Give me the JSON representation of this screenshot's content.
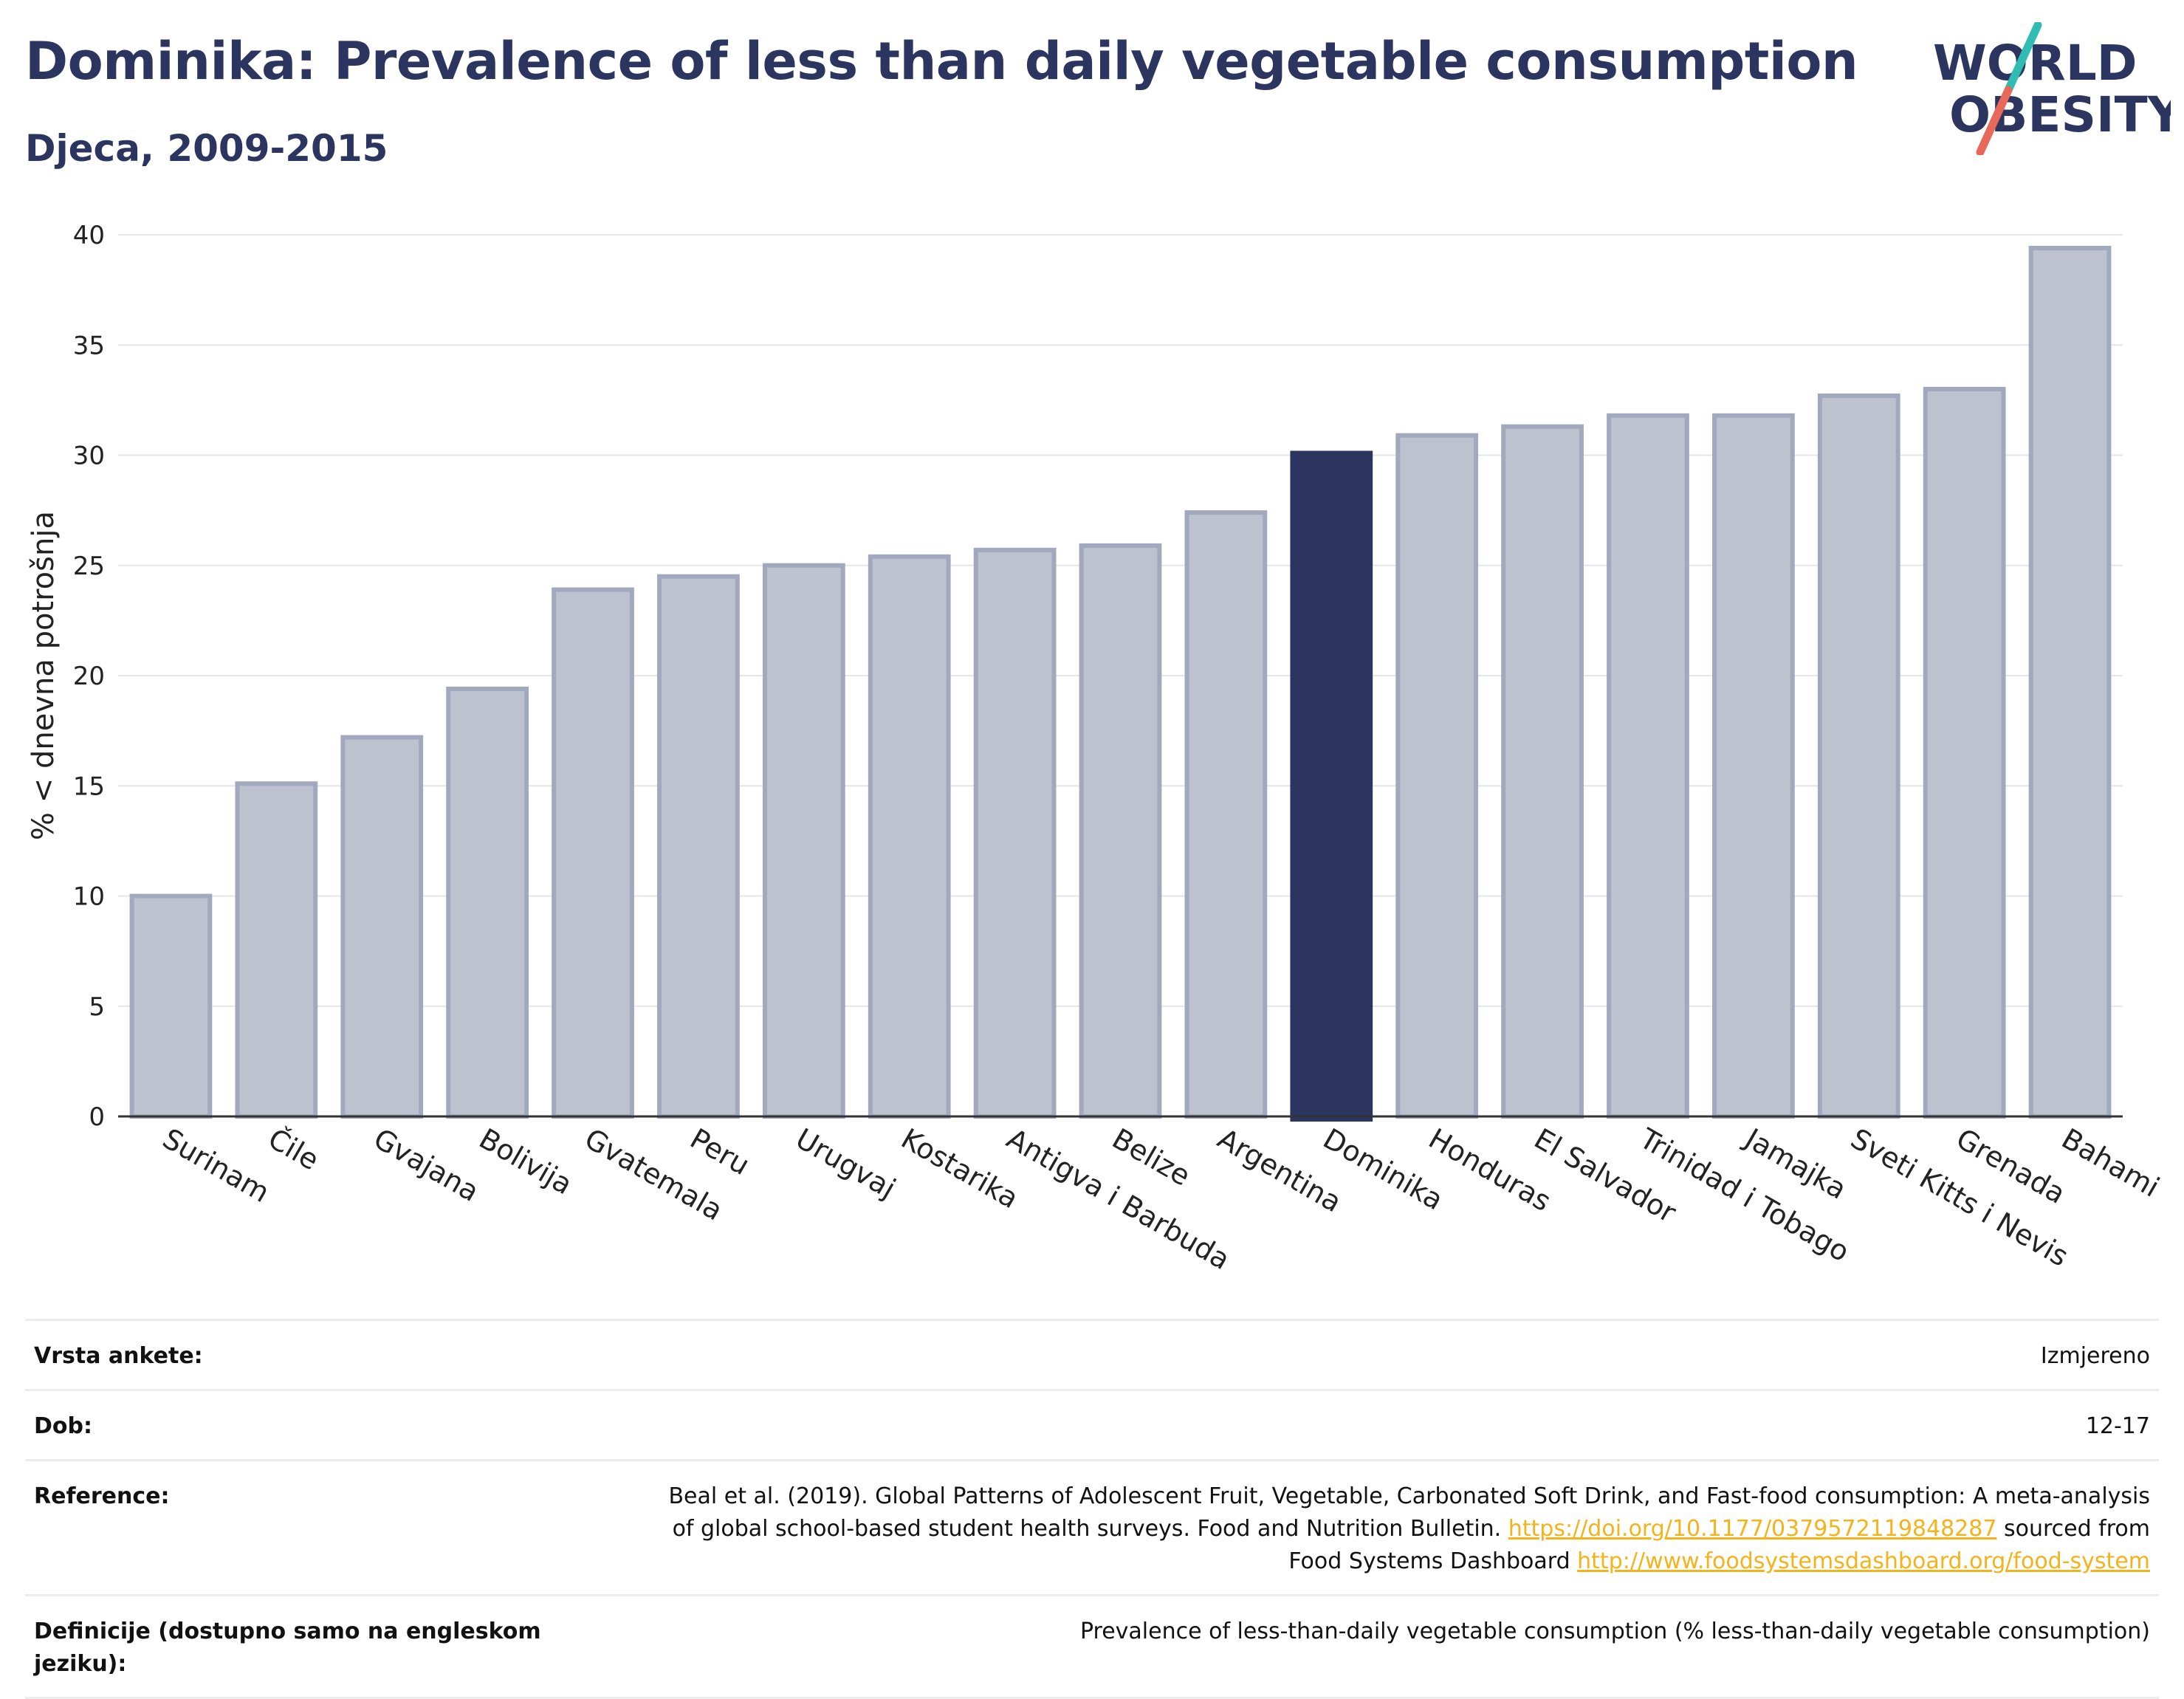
{
  "header": {
    "title": "Dominika: Prevalence of less than daily vegetable consumption",
    "subtitle": "Djeca, 2009-2015"
  },
  "logo": {
    "line1": "WORLD",
    "line2": "OBESITY",
    "colors": {
      "text": "#2b3560",
      "slash_teal": "#2fbcb3",
      "slash_coral": "#e8685a"
    }
  },
  "chart_data": {
    "type": "bar",
    "title": "",
    "xlabel": "",
    "ylabel": "% < dnevna potrošnja",
    "ylim": [
      0,
      40
    ],
    "yticks": [
      0,
      5,
      10,
      15,
      20,
      25,
      30,
      35,
      40
    ],
    "grid": true,
    "categories": [
      "Surinam",
      "Čile",
      "Gvajana",
      "Bolivija",
      "Gvatemala",
      "Peru",
      "Urugvaj",
      "Kostarika",
      "Antigva i Barbuda",
      "Belize",
      "Argentina",
      "Dominika",
      "Honduras",
      "El Salvador",
      "Trinidad i Tobago",
      "Jamajka",
      "Sveti Kitts i Nevis",
      "Grenada",
      "Bahami"
    ],
    "values": [
      10.0,
      15.1,
      17.2,
      19.4,
      23.9,
      24.5,
      25.0,
      25.4,
      25.7,
      25.9,
      27.4,
      30.1,
      30.9,
      31.3,
      31.8,
      31.8,
      32.7,
      33.0,
      39.4
    ],
    "highlight": "Dominika",
    "colors": {
      "bar": "#bec2cf",
      "bar_border": "#a2a8bd",
      "highlight": "#2b3560",
      "grid": "#e6e6ea",
      "axis": "#333333"
    }
  },
  "info": {
    "rows": [
      {
        "key": "Vrsta ankete:",
        "value": "Izmjereno"
      },
      {
        "key": "Dob:",
        "value": "12-17"
      },
      {
        "key": "Reference:",
        "value_line1": "Beal et al. (2019). Global Patterns of Adolescent Fruit, Vegetable, Carbonated Soft Drink, and Fast-food consumption: A meta-analysis",
        "value_line2_pre": "of global school-based student health surveys. Food and Nutrition Bulletin. ",
        "link1": "https://doi.org/10.1177/0379572119848287",
        "value_line2_post": " sourced from",
        "value_line3_pre": "Food Systems Dashboard ",
        "link2": "http://www.foodsystemsdashboard.org/food-system"
      },
      {
        "key": "Definicije (dostupno samo na engleskom jeziku):",
        "value": "Prevalence of less-than-daily vegetable consumption (% less-than-daily vegetable consumption)"
      }
    ]
  }
}
